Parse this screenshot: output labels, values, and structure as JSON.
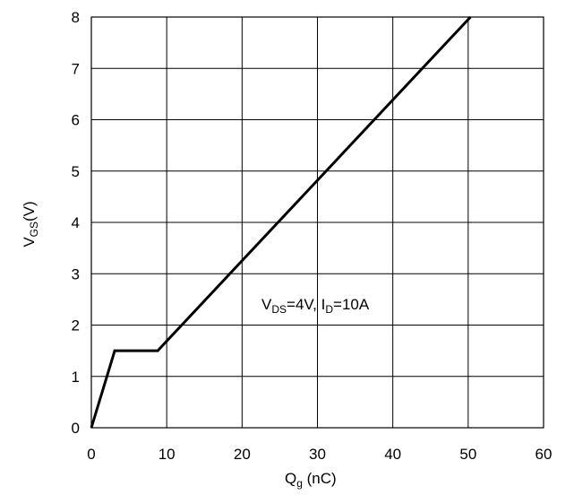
{
  "chart_data": {
    "type": "line",
    "xlim": [
      0,
      60
    ],
    "ylim": [
      0,
      8
    ],
    "x_ticks": [
      0,
      10,
      20,
      30,
      40,
      50,
      60
    ],
    "y_ticks": [
      0,
      1,
      2,
      3,
      4,
      5,
      6,
      7,
      8
    ],
    "grid": true,
    "xlabel": {
      "main": "Q",
      "sub": "g",
      "rest": " (nC)"
    },
    "ylabel": {
      "main": "V",
      "sub": "GS",
      "rest": "(V)"
    },
    "annotation": {
      "v": "V",
      "ds": "DS",
      "mid": "=4V, I",
      "d": "D",
      "end": "=10A"
    },
    "series": [
      {
        "x": [
          0,
          3.1,
          8.8,
          50.3
        ],
        "y": [
          0,
          1.5,
          1.5,
          8
        ]
      }
    ],
    "line_color": "#000000"
  }
}
